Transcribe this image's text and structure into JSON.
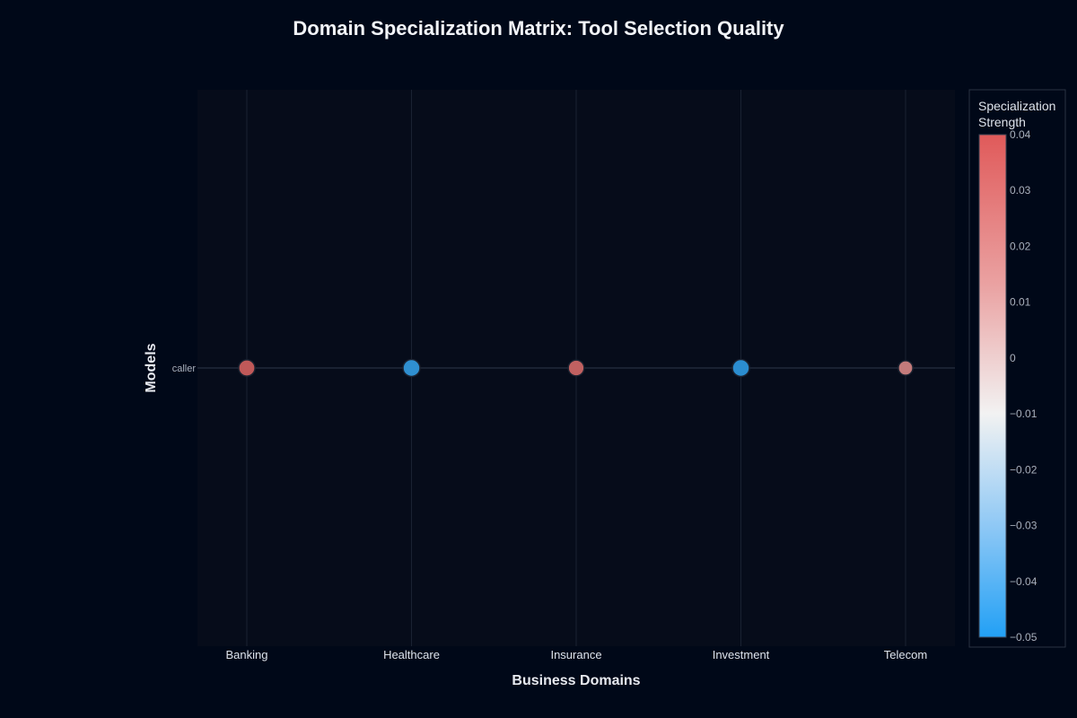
{
  "chart_data": {
    "type": "scatter",
    "title": "Domain Specialization Matrix: Tool Selection Quality",
    "xlabel": "Business Domains",
    "ylabel": "Models",
    "categories": [
      "Banking",
      "Healthcare",
      "Insurance",
      "Investment",
      "Telecom"
    ],
    "y_categories": [
      "caller"
    ],
    "points": [
      {
        "x": "Banking",
        "y": "caller",
        "value": 0.034
      },
      {
        "x": "Healthcare",
        "y": "caller",
        "value": -0.042
      },
      {
        "x": "Insurance",
        "y": "caller",
        "value": 0.03
      },
      {
        "x": "Investment",
        "y": "caller",
        "value": -0.044
      },
      {
        "x": "Telecom",
        "y": "caller",
        "value": 0.018
      }
    ],
    "colorbar": {
      "title_lines": [
        "Specialization",
        "Strength"
      ],
      "range": [
        -0.05,
        0.04
      ],
      "ticks": [
        0.04,
        0.03,
        0.02,
        0.01,
        0,
        -0.01,
        -0.02,
        -0.03,
        -0.04,
        -0.05
      ],
      "tick_labels": [
        "0.04",
        "0.03",
        "0.02",
        "0.01",
        "0",
        "−0.01",
        "−0.02",
        "−0.03",
        "−0.04",
        "−0.05"
      ],
      "colors": {
        "high": "#e05a5a",
        "mid": "#f2f2f2",
        "low": "#22a0f5"
      }
    },
    "grid": true,
    "legend": "none"
  },
  "colors": {
    "background": "#000818",
    "plot_background": "#060c1a",
    "grid": "#1a2232"
  }
}
